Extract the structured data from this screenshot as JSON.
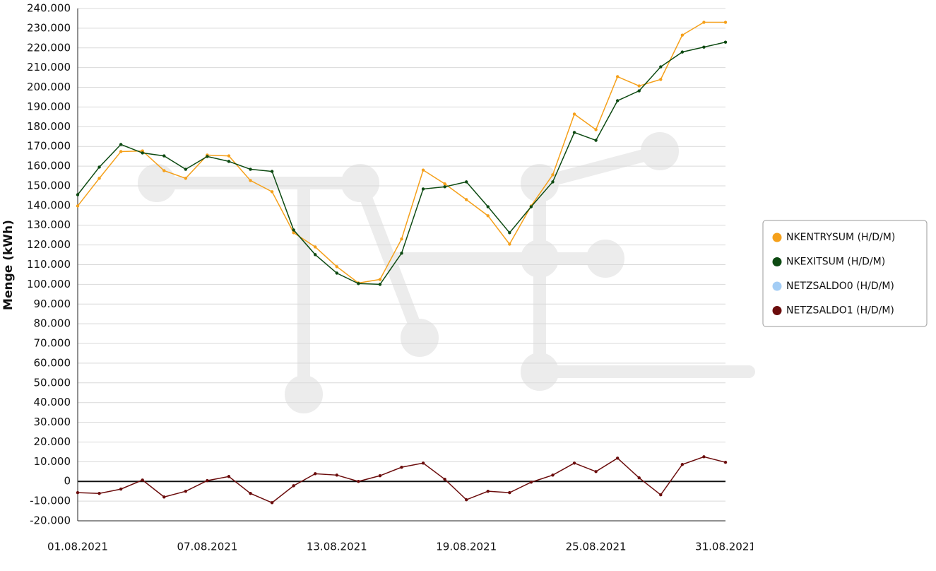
{
  "chart_data": {
    "type": "line",
    "y_label": "Menge (kWh)",
    "categories": [
      "01.08.2021",
      null,
      null,
      null,
      null,
      null,
      "07.08.2021",
      null,
      null,
      null,
      null,
      null,
      "13.08.2021",
      null,
      null,
      null,
      null,
      null,
      "19.08.2021",
      null,
      null,
      null,
      null,
      null,
      "25.08.2021",
      null,
      null,
      null,
      null,
      null,
      "31.08.2021"
    ],
    "series": [
      {
        "name": "NKENTRYSUM (H/D/M)",
        "color": "#f5a01a",
        "values": [
          139800,
          153800,
          167400,
          167700,
          157700,
          153800,
          165600,
          165200,
          152700,
          147000,
          126200,
          119000,
          109000,
          100700,
          102500,
          123000,
          158000,
          151000,
          143000,
          134800,
          120400,
          139800,
          155600,
          186400,
          178500,
          205400,
          200700,
          204000,
          226500,
          233000,
          233000
        ]
      },
      {
        "name": "NKEXITSUM (H/D/M)",
        "color": "#0d4a12",
        "values": [
          145500,
          159500,
          171000,
          166700,
          165200,
          158400,
          164900,
          162400,
          158400,
          157300,
          127600,
          115100,
          105700,
          100400,
          100000,
          115800,
          148400,
          149500,
          152000,
          139400,
          126200,
          139400,
          152000,
          177100,
          173100,
          193200,
          198200,
          210400,
          217900,
          220400,
          222900
        ]
      },
      {
        "name": "NETZSALDO0 (H/D/M)",
        "color": "#a3cdf5",
        "values": [
          null,
          null,
          null,
          null,
          null,
          null,
          null,
          null,
          null,
          null,
          null,
          null,
          null,
          null,
          null,
          null,
          null,
          null,
          null,
          null,
          null,
          null,
          null,
          null,
          null,
          null,
          null,
          null,
          null,
          null,
          null
        ]
      },
      {
        "name": "NETZSALDO1 (H/D/M)",
        "color": "#6b0c0c",
        "values": [
          -5700,
          -6100,
          -3900,
          700,
          -7900,
          -5000,
          400,
          2500,
          -6100,
          -10800,
          -2200,
          3900,
          3200,
          0,
          2900,
          7200,
          9300,
          1100,
          -9300,
          -5000,
          -5700,
          -400,
          3200,
          9300,
          5000,
          11800,
          1800,
          -6800,
          8600,
          12500,
          9700
        ]
      }
    ],
    "ylim": [
      -20000,
      240000
    ],
    "yticks": [
      {
        "value": -20000,
        "label": "-20.000"
      },
      {
        "value": -10000,
        "label": "-10.000"
      },
      0,
      {
        "value": 10000,
        "label": "10.000"
      },
      {
        "value": 20000,
        "label": "20.000"
      },
      {
        "value": 30000,
        "label": "30.000"
      },
      {
        "value": 40000,
        "label": "40.000"
      },
      {
        "value": 50000,
        "label": "50.000"
      },
      {
        "value": 60000,
        "label": "60.000"
      },
      {
        "value": 70000,
        "label": "70.000"
      },
      {
        "value": 80000,
        "label": "80.000"
      },
      {
        "value": 90000,
        "label": "90.000"
      },
      {
        "value": 100000,
        "label": "100.000"
      },
      {
        "value": 110000,
        "label": "110.000"
      },
      {
        "value": 120000,
        "label": "120.000"
      },
      {
        "value": 130000,
        "label": "130.000"
      },
      {
        "value": 140000,
        "label": "140.000"
      },
      {
        "value": 150000,
        "label": "150.000"
      },
      {
        "value": 160000,
        "label": "160.000"
      },
      {
        "value": 170000,
        "label": "170.000"
      },
      {
        "value": 180000,
        "label": "180.000"
      },
      {
        "value": 190000,
        "label": "190.000"
      },
      {
        "value": 200000,
        "label": "200.000"
      },
      {
        "value": 210000,
        "label": "210.000"
      },
      {
        "value": 220000,
        "label": "220.000"
      },
      {
        "value": 230000,
        "label": "230.000"
      },
      {
        "value": 240000,
        "label": "240.000"
      }
    ],
    "grid": true
  }
}
